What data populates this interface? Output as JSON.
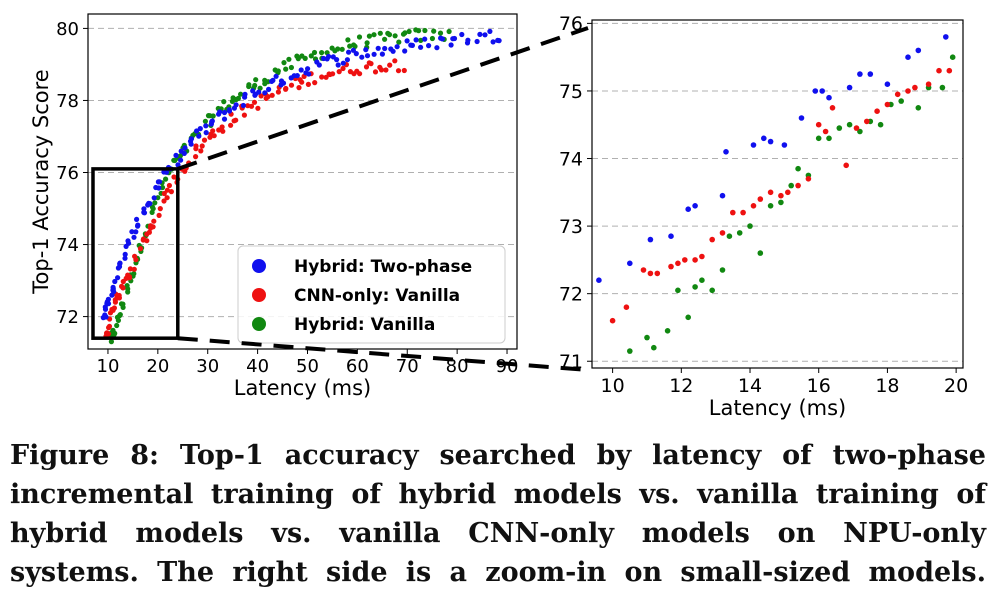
{
  "caption": "Figure 8: Top-1 accuracy searched by latency of two-phase incremental training of hybrid models vs. vanilla training of hybrid models vs. vanilla CNN-only models on NPU-only systems. The right side is a zoom-in on small-sized models.",
  "colors": {
    "Hybrid: Two-phase": "#1010ee",
    "CNN-only: Vanilla": "#ee1111",
    "Hybrid: Vanilla": "#118811",
    "grid": "#b0b0b0"
  },
  "chart_data": [
    {
      "type": "scatter",
      "xlabel": "Latency (ms)",
      "ylabel": "Top-1 Accuracy Score",
      "xlim": [
        6,
        92
      ],
      "ylim": [
        71.1,
        80.4
      ],
      "xticks": [
        "10",
        "20",
        "30",
        "40",
        "50",
        "60",
        "70",
        "80",
        "90"
      ],
      "yticks": [
        "72",
        "74",
        "76",
        "78",
        "80"
      ],
      "grid": "horizontal dashed",
      "legend": {
        "placement": "bottom-right",
        "entries": [
          "Hybrid: Two-phase",
          "CNN-only: Vanilla",
          "Hybrid: Vanilla"
        ]
      },
      "series": [
        {
          "name": "Hybrid: Two-phase",
          "trend": [
            [
              9.5,
              72.1
            ],
            [
              11,
              72.8
            ],
            [
              13,
              73.6
            ],
            [
              15,
              74.3
            ],
            [
              17,
              74.9
            ],
            [
              20,
              75.6
            ],
            [
              23,
              76.2
            ],
            [
              27,
              76.9
            ],
            [
              32,
              77.5
            ],
            [
              38,
              78.1
            ],
            [
              45,
              78.6
            ],
            [
              52,
              79.0
            ],
            [
              60,
              79.3
            ],
            [
              70,
              79.5
            ],
            [
              80,
              79.7
            ],
            [
              88,
              79.8
            ]
          ],
          "points": 140,
          "x_range": [
            9.5,
            89
          ]
        },
        {
          "name": "CNN-only: Vanilla",
          "trend": [
            [
              10,
              71.6
            ],
            [
              11,
              72.3
            ],
            [
              13,
              72.8
            ],
            [
              15,
              73.4
            ],
            [
              17,
              74.0
            ],
            [
              20,
              74.9
            ],
            [
              23,
              75.7
            ],
            [
              27,
              76.5
            ],
            [
              32,
              77.2
            ],
            [
              38,
              77.8
            ],
            [
              45,
              78.3
            ],
            [
              52,
              78.7
            ],
            [
              60,
              78.9
            ],
            [
              67,
              79.0
            ]
          ],
          "points": 120,
          "x_range": [
            10,
            69
          ]
        },
        {
          "name": "Hybrid: Vanilla",
          "trend": [
            [
              10.5,
              71.3
            ],
            [
              12,
              71.9
            ],
            [
              14,
              72.8
            ],
            [
              16,
              73.7
            ],
            [
              18,
              74.6
            ],
            [
              20,
              75.3
            ],
            [
              23,
              76.2
            ],
            [
              27,
              76.9
            ],
            [
              32,
              77.7
            ],
            [
              38,
              78.3
            ],
            [
              45,
              78.9
            ],
            [
              52,
              79.3
            ],
            [
              60,
              79.6
            ],
            [
              70,
              79.8
            ],
            [
              77,
              79.8
            ]
          ],
          "points": 130,
          "x_range": [
            10.5,
            78
          ]
        }
      ],
      "zoom_box": {
        "x": [
          7,
          24
        ],
        "y": [
          71.4,
          76.1
        ]
      }
    },
    {
      "type": "scatter",
      "xlabel": "Latency (ms)",
      "ylabel": "",
      "xlim": [
        9.4,
        20.2
      ],
      "ylim": [
        70.9,
        76.05
      ],
      "xticks": [
        "10",
        "12",
        "14",
        "16",
        "18",
        "20"
      ],
      "yticks": [
        "71",
        "72",
        "73",
        "74",
        "75",
        "76"
      ],
      "grid": "horizontal dashed",
      "series": [
        {
          "name": "Hybrid: Two-phase",
          "x": [
            9.6,
            10.5,
            11.1,
            11.7,
            12.2,
            12.4,
            13.2,
            13.3,
            14.1,
            14.4,
            14.6,
            15.0,
            15.5,
            15.9,
            16.1,
            16.3,
            16.9,
            17.2,
            17.5,
            18.0,
            18.6,
            18.9,
            19.7
          ],
          "y": [
            72.2,
            72.45,
            72.8,
            72.85,
            73.25,
            73.3,
            73.45,
            74.1,
            74.2,
            74.3,
            74.25,
            74.2,
            74.6,
            75.0,
            75.0,
            74.9,
            75.05,
            75.25,
            75.25,
            75.1,
            75.5,
            75.6,
            75.8
          ]
        },
        {
          "name": "CNN-only: Vanilla",
          "x": [
            10.0,
            10.4,
            10.9,
            11.1,
            11.3,
            11.7,
            11.9,
            12.1,
            12.4,
            12.6,
            12.9,
            13.2,
            13.5,
            13.8,
            14.1,
            14.3,
            14.6,
            14.9,
            15.1,
            15.4,
            15.7,
            16.0,
            16.2,
            16.4,
            16.8,
            17.1,
            17.4,
            17.7,
            18.0,
            18.3,
            18.6,
            18.8,
            19.2,
            19.5,
            19.8
          ],
          "y": [
            71.6,
            71.8,
            72.35,
            72.3,
            72.3,
            72.4,
            72.45,
            72.5,
            72.5,
            72.55,
            72.8,
            72.9,
            73.2,
            73.2,
            73.3,
            73.4,
            73.5,
            73.45,
            73.5,
            73.6,
            73.7,
            74.5,
            74.4,
            74.75,
            73.9,
            74.45,
            74.55,
            74.7,
            74.8,
            74.95,
            75.0,
            75.05,
            75.1,
            75.3,
            75.3
          ]
        },
        {
          "name": "Hybrid: Vanilla",
          "x": [
            10.5,
            11.0,
            11.2,
            11.6,
            11.9,
            12.2,
            12.4,
            12.6,
            12.9,
            13.2,
            13.4,
            13.7,
            14.0,
            14.3,
            14.6,
            14.9,
            15.2,
            15.4,
            15.7,
            16.0,
            16.3,
            16.6,
            16.9,
            17.2,
            17.5,
            17.8,
            18.1,
            18.4,
            18.9,
            19.2,
            19.6,
            19.9
          ],
          "y": [
            71.15,
            71.35,
            71.2,
            71.45,
            72.05,
            71.65,
            72.1,
            72.2,
            72.05,
            72.35,
            72.85,
            72.9,
            73.0,
            72.6,
            73.3,
            73.35,
            73.6,
            73.85,
            73.75,
            74.3,
            74.3,
            74.45,
            74.5,
            74.4,
            74.55,
            74.5,
            74.8,
            74.85,
            74.75,
            75.05,
            75.05,
            75.5
          ]
        }
      ]
    }
  ]
}
